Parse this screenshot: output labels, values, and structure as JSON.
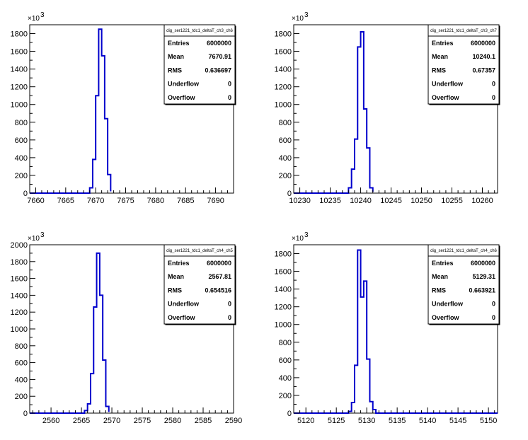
{
  "chart_data": [
    {
      "type": "bar",
      "histogram_name": "dig_ser1221_tdc1_deltaT_ch3_ch6",
      "xlim": [
        7659,
        7693
      ],
      "ylim": [
        0,
        1900
      ],
      "y_multiplier": "×10",
      "y_exponent": "3",
      "xticks": [
        7660,
        7665,
        7670,
        7675,
        7680,
        7685,
        7690
      ],
      "yticks": [
        0,
        200,
        400,
        600,
        800,
        1000,
        1200,
        1400,
        1600,
        1800
      ],
      "bin_edges": [
        7669,
        7669.5,
        7670,
        7670.5,
        7671,
        7671.5,
        7672,
        7672.5
      ],
      "values": [
        60,
        380,
        1100,
        1850,
        1550,
        840,
        210,
        20
      ],
      "stats": [
        {
          "label": "Entries",
          "value": "6000000"
        },
        {
          "label": "Mean",
          "value": "7670.91"
        },
        {
          "label": "RMS",
          "value": "0.636697"
        },
        {
          "label": "Underflow",
          "value": "0"
        },
        {
          "label": "Overflow",
          "value": "0"
        }
      ]
    },
    {
      "type": "bar",
      "histogram_name": "dig_ser1221_tdc1_deltaT_ch3_ch7",
      "xlim": [
        10229,
        10262.5
      ],
      "ylim": [
        0,
        1900
      ],
      "y_multiplier": "×10",
      "y_exponent": "3",
      "xticks": [
        10230,
        10235,
        10240,
        10245,
        10250,
        10255,
        10260
      ],
      "yticks": [
        0,
        200,
        400,
        600,
        800,
        1000,
        1200,
        1400,
        1600,
        1800
      ],
      "bin_edges": [
        10238,
        10238.5,
        10239,
        10239.5,
        10240,
        10240.5,
        10241,
        10241.5,
        10242
      ],
      "values": [
        60,
        270,
        610,
        1650,
        1820,
        950,
        510,
        60,
        15
      ],
      "stats": [
        {
          "label": "Entries",
          "value": "6000000"
        },
        {
          "label": "Mean",
          "value": "10240.1"
        },
        {
          "label": "RMS",
          "value": "0.67357"
        },
        {
          "label": "Underflow",
          "value": "0"
        },
        {
          "label": "Overflow",
          "value": "0"
        }
      ]
    },
    {
      "type": "bar",
      "histogram_name": "dig_ser1221_tdc1_deltaT_ch4_ch5",
      "xlim": [
        2556.5,
        2590
      ],
      "ylim": [
        0,
        2000
      ],
      "y_multiplier": "×10",
      "y_exponent": "3",
      "xticks": [
        2560,
        2565,
        2570,
        2575,
        2580,
        2585,
        2590
      ],
      "yticks": [
        0,
        200,
        400,
        600,
        800,
        1000,
        1200,
        1400,
        1600,
        1800,
        2000
      ],
      "bin_edges": [
        2565.5,
        2566,
        2566.5,
        2567,
        2567.5,
        2568,
        2568.5,
        2569,
        2569.5
      ],
      "values": [
        30,
        110,
        470,
        1260,
        1900,
        1400,
        630,
        80,
        15
      ],
      "stats": [
        {
          "label": "Entries",
          "value": "6000000"
        },
        {
          "label": "Mean",
          "value": "2567.81"
        },
        {
          "label": "RMS",
          "value": "0.654516"
        },
        {
          "label": "Underflow",
          "value": "0"
        },
        {
          "label": "Overflow",
          "value": "0"
        }
      ]
    },
    {
      "type": "bar",
      "histogram_name": "dig_ser1221_tdc1_deltaT_ch4_ch6",
      "xlim": [
        5118,
        5151.5
      ],
      "ylim": [
        0,
        1900
      ],
      "y_multiplier": "×10",
      "y_exponent": "3",
      "xticks": [
        5120,
        5125,
        5130,
        5135,
        5140,
        5145,
        5150
      ],
      "yticks": [
        0,
        200,
        400,
        600,
        800,
        1000,
        1200,
        1400,
        1600,
        1800
      ],
      "bin_edges": [
        5127,
        5127.5,
        5128,
        5128.5,
        5129,
        5129.5,
        5130,
        5130.5,
        5131,
        5131.5
      ],
      "values": [
        20,
        120,
        540,
        1840,
        1310,
        1490,
        610,
        130,
        40
      ],
      "stats": [
        {
          "label": "Entries",
          "value": "6000000"
        },
        {
          "label": "Mean",
          "value": "5129.31"
        },
        {
          "label": "RMS",
          "value": "0.663921"
        },
        {
          "label": "Underflow",
          "value": "0"
        },
        {
          "label": "Overflow",
          "value": "0"
        }
      ]
    }
  ]
}
